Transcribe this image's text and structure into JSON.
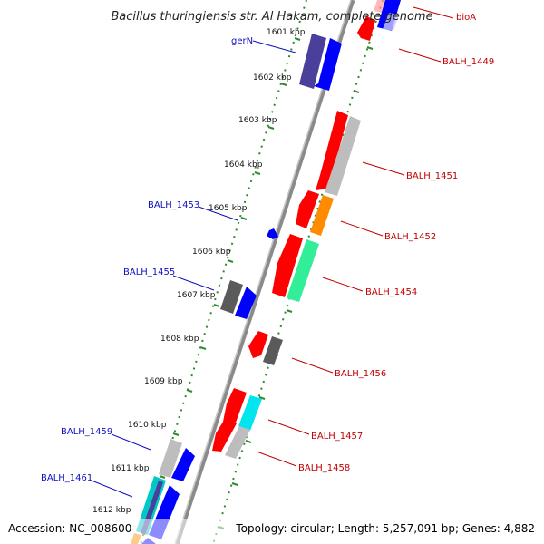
{
  "title": "Bacillus thuringiensis str. Al Hakam, complete genome",
  "footer": {
    "accession": "Accession: NC_008600",
    "summary": "Topology: circular; Length: 5,257,091 bp; Genes: 4,882"
  },
  "kbp_ticks": [
    "1601 kbp",
    "1602 kbp",
    "1603 kbp",
    "1604 kbp",
    "1605 kbp",
    "1606 kbp",
    "1607 kbp",
    "1608 kbp",
    "1609 kbp",
    "1610 kbp",
    "1611 kbp",
    "1612 kbp"
  ],
  "gene_labels": {
    "left": [
      "gerN",
      "BALH_1453",
      "BALH_1455",
      "BALH_1459",
      "BALH_1461"
    ],
    "right": [
      "bioA",
      "BALH_1449",
      "BALH_1451",
      "BALH_1452",
      "BALH_1454",
      "BALH_1456",
      "BALH_1457",
      "BALH_1458"
    ]
  },
  "colors": {
    "forward": "#0000ff",
    "reverse": "#ff0000",
    "gray": "#bdbdbd",
    "dark_gray": "#5a5a5a",
    "navy": "#4a3f9a",
    "orange": "#ff8c00",
    "green": "#33ee99",
    "cyan": "#00e5ee",
    "backbone": "#8a8a8a",
    "tick_green": "#2e8b2e"
  }
}
